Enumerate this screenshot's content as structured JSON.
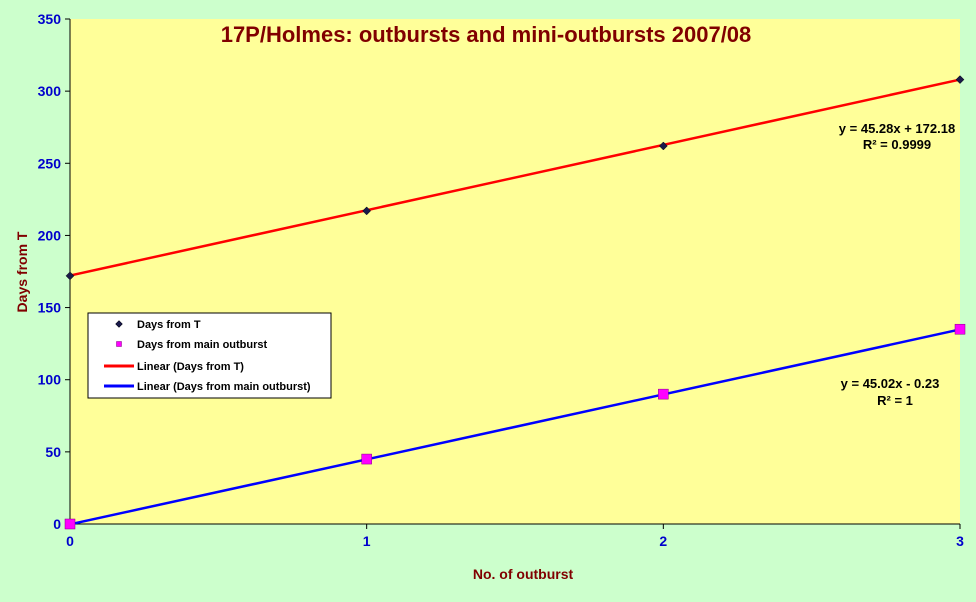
{
  "chart_data": {
    "type": "scatter",
    "title": "17P/Holmes:  outbursts and mini-outbursts 2007/08",
    "xlabel": "No. of outburst",
    "ylabel": "Days from T",
    "xlim": [
      0,
      3
    ],
    "ylim": [
      0,
      350
    ],
    "x_ticks": [
      0,
      1,
      2,
      3
    ],
    "y_ticks": [
      0,
      50,
      100,
      150,
      200,
      250,
      300,
      350
    ],
    "grid": false,
    "legend_position": "left",
    "series": [
      {
        "name": "Days from T",
        "marker": "diamond",
        "color": "#1a1a4a",
        "x": [
          0,
          1,
          2,
          3
        ],
        "y": [
          172,
          217,
          262,
          308
        ]
      },
      {
        "name": "Days from main outburst",
        "marker": "square",
        "color": "#ff00ff",
        "x": [
          0,
          1,
          2,
          3
        ],
        "y": [
          0,
          45,
          90,
          135
        ]
      }
    ],
    "trendlines": [
      {
        "name": "Linear (Days from T)",
        "color": "#ff0000",
        "slope": 45.28,
        "intercept": 172.18,
        "equation": "y = 45.28x + 172.18",
        "r2": "R² = 0.9999"
      },
      {
        "name": "Linear (Days from main outburst)",
        "color": "#0000ff",
        "slope": 45.02,
        "intercept": -0.23,
        "equation": "y = 45.02x  - 0.23",
        "r2": "R² = 1"
      }
    ],
    "colors": {
      "plot_background": "#ffff99",
      "page_background": "#ccffcc",
      "title": "#800000",
      "axis_label": "#800000",
      "tick_label": "#0000cc"
    }
  }
}
